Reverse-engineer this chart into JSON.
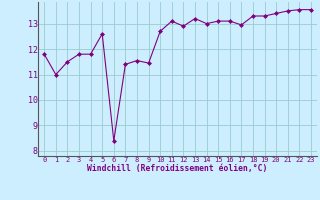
{
  "x": [
    0,
    1,
    2,
    3,
    4,
    5,
    6,
    7,
    8,
    9,
    10,
    11,
    12,
    13,
    14,
    15,
    16,
    17,
    18,
    19,
    20,
    21,
    22,
    23
  ],
  "y": [
    11.8,
    11.0,
    11.5,
    11.8,
    11.8,
    12.6,
    8.4,
    11.4,
    11.55,
    11.45,
    12.7,
    13.1,
    12.9,
    13.2,
    13.0,
    13.1,
    13.1,
    12.95,
    13.3,
    13.3,
    13.4,
    13.5,
    13.55,
    13.55
  ],
  "line_color": "#800080",
  "marker": "D",
  "marker_size": 2.0,
  "bg_color": "#cceeff",
  "grid_color": "#99cccc",
  "xlabel": "Windchill (Refroidissement éolien,°C)",
  "xlabel_color": "#800080",
  "tick_color": "#800080",
  "axis_color": "#555555",
  "ylim": [
    7.8,
    13.85
  ],
  "yticks": [
    8,
    9,
    10,
    11,
    12,
    13
  ],
  "ytick_labels": [
    "8",
    "9",
    "10",
    "11",
    "12",
    "13"
  ],
  "xlim": [
    -0.5,
    23.5
  ],
  "xtick_labels": [
    "0",
    "1",
    "2",
    "3",
    "4",
    "5",
    "6",
    "7",
    "8",
    "9",
    "10",
    "11",
    "12",
    "13",
    "14",
    "15",
    "16",
    "17",
    "18",
    "19",
    "20",
    "21",
    "22",
    "23"
  ],
  "xlabel_fontsize": 5.8,
  "xtick_fontsize": 5.0,
  "ytick_fontsize": 6.0
}
